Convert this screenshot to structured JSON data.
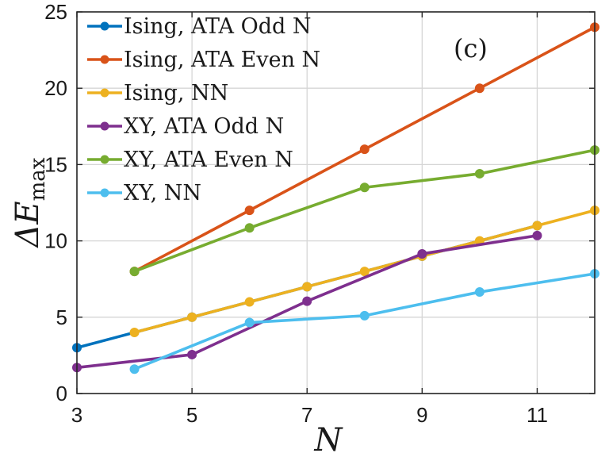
{
  "chart_data": {
    "type": "line",
    "title": "",
    "xlabel": "N",
    "ylabel_base": "ΔE",
    "ylabel_sub": "max",
    "xlim": [
      3,
      12
    ],
    "ylim": [
      0,
      25
    ],
    "xticks": [
      3,
      5,
      7,
      9,
      11
    ],
    "yticks": [
      0,
      5,
      10,
      15,
      20,
      25
    ],
    "grid": true,
    "legend_position": "top-left",
    "annotation": "(c)",
    "series": [
      {
        "name": "Ising,  ATA Odd N",
        "color": "#0072BD",
        "x": [
          3,
          5,
          7,
          9,
          11
        ],
        "y": [
          3,
          5,
          7,
          9,
          11
        ]
      },
      {
        "name": "Ising,  ATA Even N",
        "color": "#D95319",
        "x": [
          4,
          6,
          8,
          10,
          12
        ],
        "y": [
          8,
          12,
          16,
          20,
          24
        ]
      },
      {
        "name": "Ising,  NN",
        "color": "#EDB120",
        "x": [
          4,
          5,
          6,
          7,
          8,
          9,
          10,
          11,
          12
        ],
        "y": [
          4,
          5,
          6,
          7,
          8,
          9,
          10,
          11,
          12
        ]
      },
      {
        "name": "XY,  ATA Odd N",
        "color": "#7E2F8E",
        "x": [
          3,
          5,
          7,
          9,
          11
        ],
        "y": [
          1.7,
          2.55,
          6.05,
          9.15,
          10.35
        ]
      },
      {
        "name": "XY,  ATA Even N",
        "color": "#77AC30",
        "x": [
          4,
          6,
          8,
          10,
          12
        ],
        "y": [
          8,
          10.85,
          13.5,
          14.4,
          15.95
        ]
      },
      {
        "name": "XY,  NN",
        "color": "#4DBEEE",
        "x": [
          4,
          6,
          8,
          10,
          12
        ],
        "y": [
          1.6,
          4.65,
          5.1,
          6.65,
          7.85
        ]
      }
    ]
  }
}
